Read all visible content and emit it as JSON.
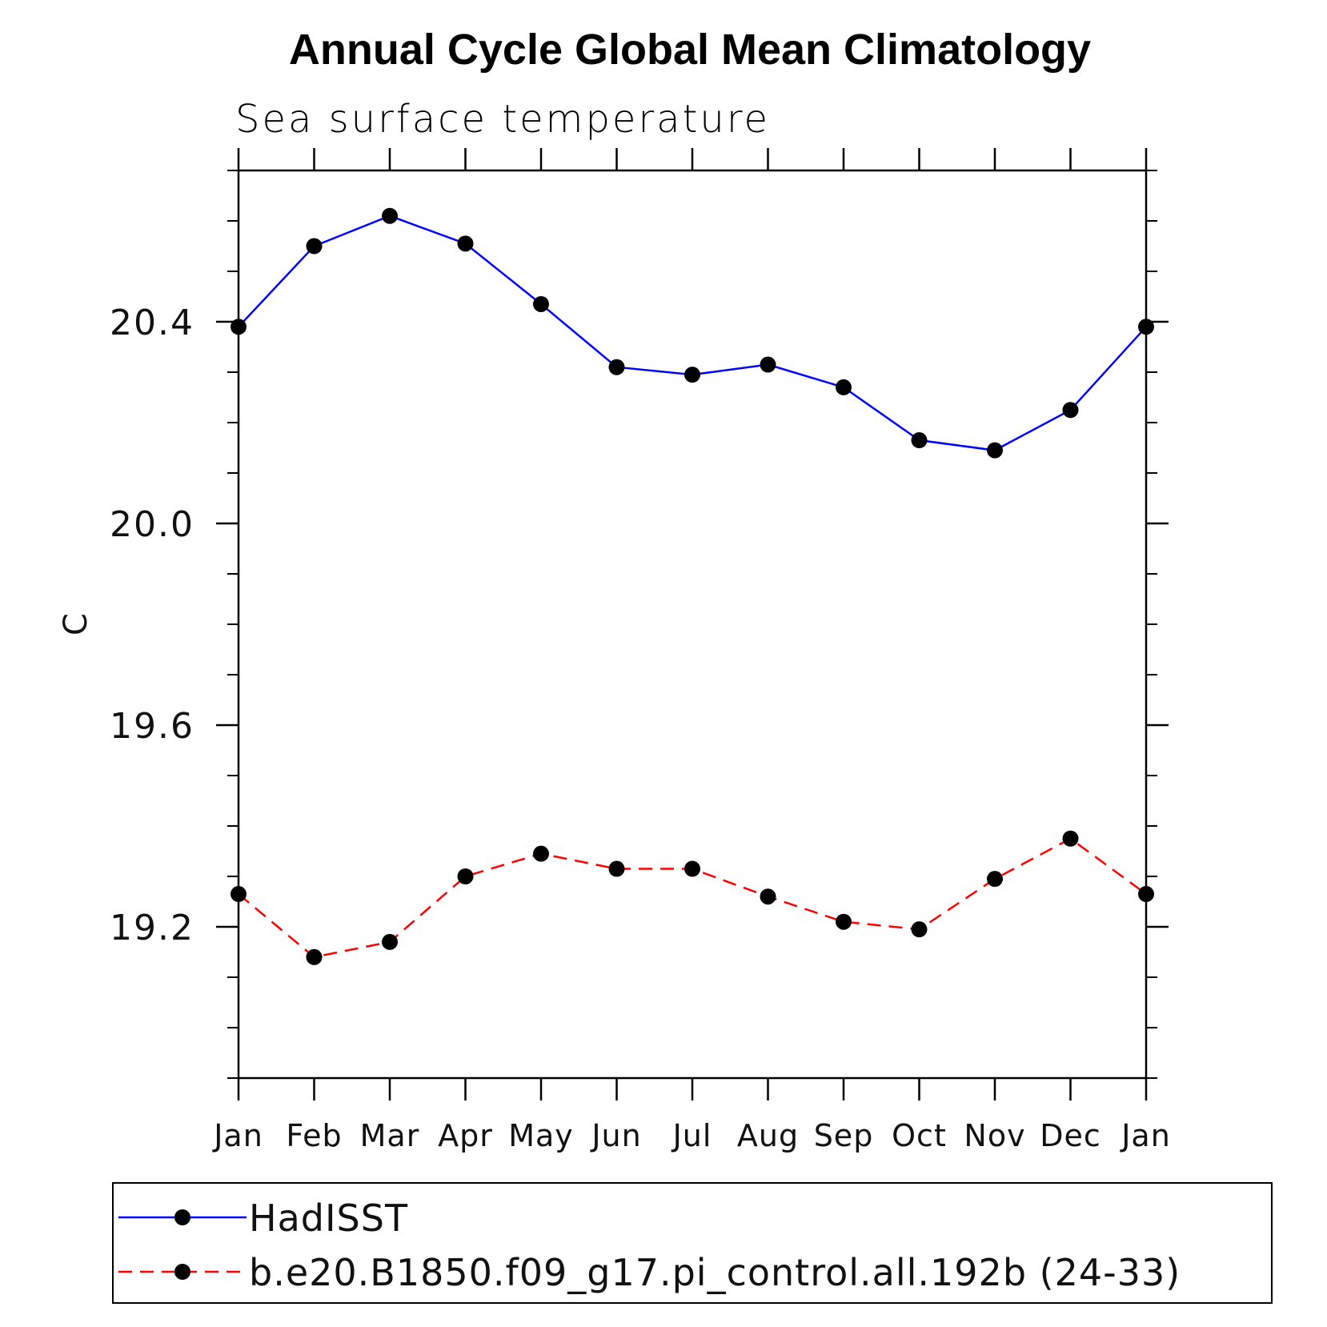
{
  "chart_data": {
    "type": "line",
    "title": "Annual Cycle Global Mean Climatology",
    "subtitle": "Sea surface temperature",
    "xlabel": "",
    "ylabel": "C",
    "categories": [
      "Jan",
      "Feb",
      "Mar",
      "Apr",
      "May",
      "Jun",
      "Jul",
      "Aug",
      "Sep",
      "Oct",
      "Nov",
      "Dec",
      "Jan"
    ],
    "ylim": [
      18.9,
      20.7
    ],
    "y_major_ticks": [
      19.2,
      19.6,
      20.0,
      20.4
    ],
    "y_tick_labels": [
      "19.2",
      "19.6",
      "20.0",
      "20.4"
    ],
    "y_minor_step": 0.1,
    "grid": false,
    "legend_placement": "bottom",
    "series": [
      {
        "name": "HadISST",
        "color": "#0000ff",
        "dash": "solid",
        "marker": "filled-circle",
        "values": [
          20.39,
          20.55,
          20.61,
          20.555,
          20.435,
          20.31,
          20.295,
          20.315,
          20.27,
          20.165,
          20.145,
          20.225,
          20.39
        ]
      },
      {
        "name": "b.e20.B1850.f09_g17.pi_control.all.192b (24-33)",
        "color": "#ff0000",
        "dash": "dashed",
        "marker": "filled-circle",
        "values": [
          19.265,
          19.14,
          19.17,
          19.3,
          19.345,
          19.315,
          19.315,
          19.26,
          19.21,
          19.195,
          19.295,
          19.375,
          19.265
        ]
      }
    ]
  }
}
